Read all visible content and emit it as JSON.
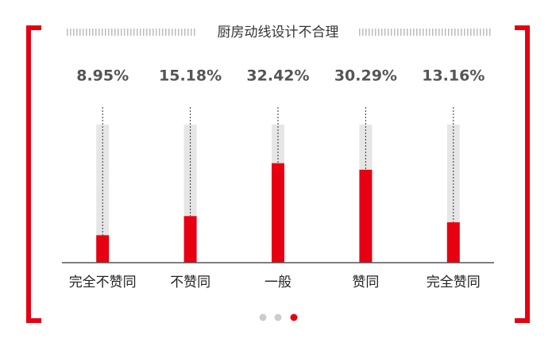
{
  "chart_data": {
    "type": "bar",
    "title": "厨房动线设计不合理",
    "categories": [
      "完全不赞同",
      "不赞同",
      "一般",
      "赞同",
      "完全赞同"
    ],
    "values": [
      8.95,
      15.18,
      32.42,
      30.29,
      13.16
    ],
    "value_labels": [
      "8.95%",
      "15.18%",
      "32.42%",
      "30.29%",
      "13.16%"
    ],
    "color": "#e60012",
    "ylim": [
      0,
      45
    ]
  }
}
